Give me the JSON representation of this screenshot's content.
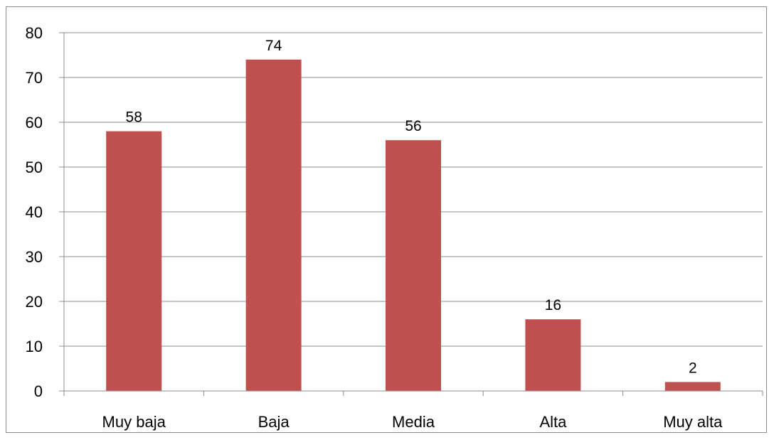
{
  "chart_data": {
    "type": "bar",
    "categories": [
      "Muy baja",
      "Baja",
      "Media",
      "Alta",
      "Muy alta"
    ],
    "values": [
      58,
      74,
      56,
      16,
      2
    ],
    "data_labels": [
      "58",
      "74",
      "56",
      "16",
      "2"
    ],
    "title": "",
    "xlabel": "",
    "ylabel": "",
    "ylim": [
      0,
      80
    ],
    "yticks": [
      "0",
      "10",
      "20",
      "30",
      "40",
      "50",
      "60",
      "70",
      "80"
    ],
    "grid": true,
    "legend": "none",
    "colors": {
      "bar": "#c0504d",
      "grid": "#8c8c8c",
      "axis": "#8c8c8c"
    }
  }
}
